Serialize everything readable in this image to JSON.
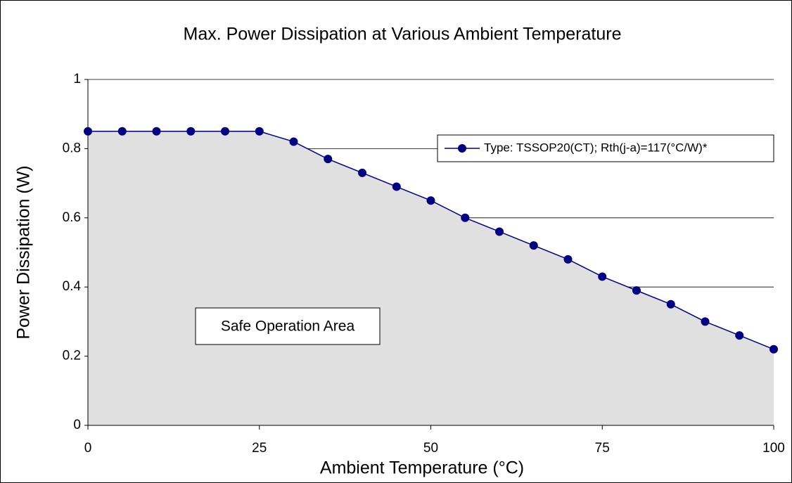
{
  "chart_data": {
    "type": "line",
    "title": "Max. Power Dissipation at Various Ambient Temperature",
    "x_label": "Ambient Temperature (°C)",
    "y_label": "Power Dissipation (W)",
    "annotation": "Safe Operation Area",
    "x": [
      0,
      5,
      10,
      15,
      20,
      25,
      30,
      35,
      40,
      45,
      50,
      55,
      60,
      65,
      70,
      75,
      80,
      85,
      90,
      95,
      100
    ],
    "series": [
      {
        "name": "Type: TSSOP20(CT); Rth(j-a)=117(°C/W)*",
        "color": "#000080",
        "values": [
          0.85,
          0.85,
          0.85,
          0.85,
          0.85,
          0.85,
          0.82,
          0.77,
          0.73,
          0.69,
          0.65,
          0.6,
          0.56,
          0.52,
          0.48,
          0.43,
          0.39,
          0.35,
          0.3,
          0.26,
          0.22
        ]
      }
    ],
    "area_color": "#e0e0e0",
    "xlim": [
      0,
      100
    ],
    "xticks": [
      0,
      25,
      50,
      75,
      100
    ],
    "ylim": [
      0,
      1
    ],
    "yticks": [
      0,
      0.2,
      0.4,
      0.6,
      0.8,
      1
    ],
    "grid": true
  }
}
